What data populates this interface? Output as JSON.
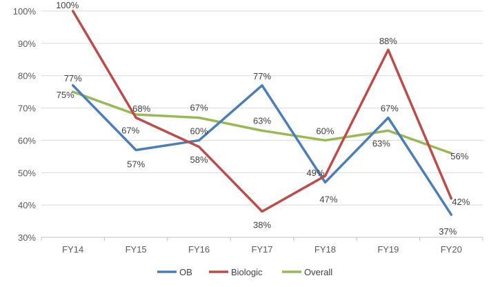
{
  "chart_data": {
    "type": "line",
    "categories": [
      "FY14",
      "FY15",
      "FY16",
      "FY17",
      "FY18",
      "FY19",
      "FY20"
    ],
    "ylim": [
      30,
      100
    ],
    "yticks": [
      30,
      40,
      50,
      60,
      70,
      80,
      90,
      100
    ],
    "ytick_suffix": "%",
    "grid": true,
    "legend_position": "bottom",
    "series": [
      {
        "name": "OB",
        "color": "#4A7EBB",
        "values": [
          77,
          57,
          60,
          77,
          47,
          67,
          37
        ],
        "labels": [
          "77%",
          "57%",
          "60%",
          "77%",
          "47%",
          "67%",
          "37%"
        ]
      },
      {
        "name": "Biologic",
        "color": "#BE4B48",
        "values": [
          100,
          67,
          58,
          38,
          49,
          88,
          42
        ],
        "labels": [
          "100%",
          "67%",
          "58%",
          "38%",
          "49%",
          "88%",
          "42%"
        ]
      },
      {
        "name": "Overall",
        "color": "#98B954",
        "values": [
          75,
          68,
          67,
          63,
          60,
          63,
          56
        ],
        "labels": [
          "75%",
          "68%",
          "67%",
          "63%",
          "60%",
          "63%",
          "56%"
        ]
      }
    ]
  }
}
